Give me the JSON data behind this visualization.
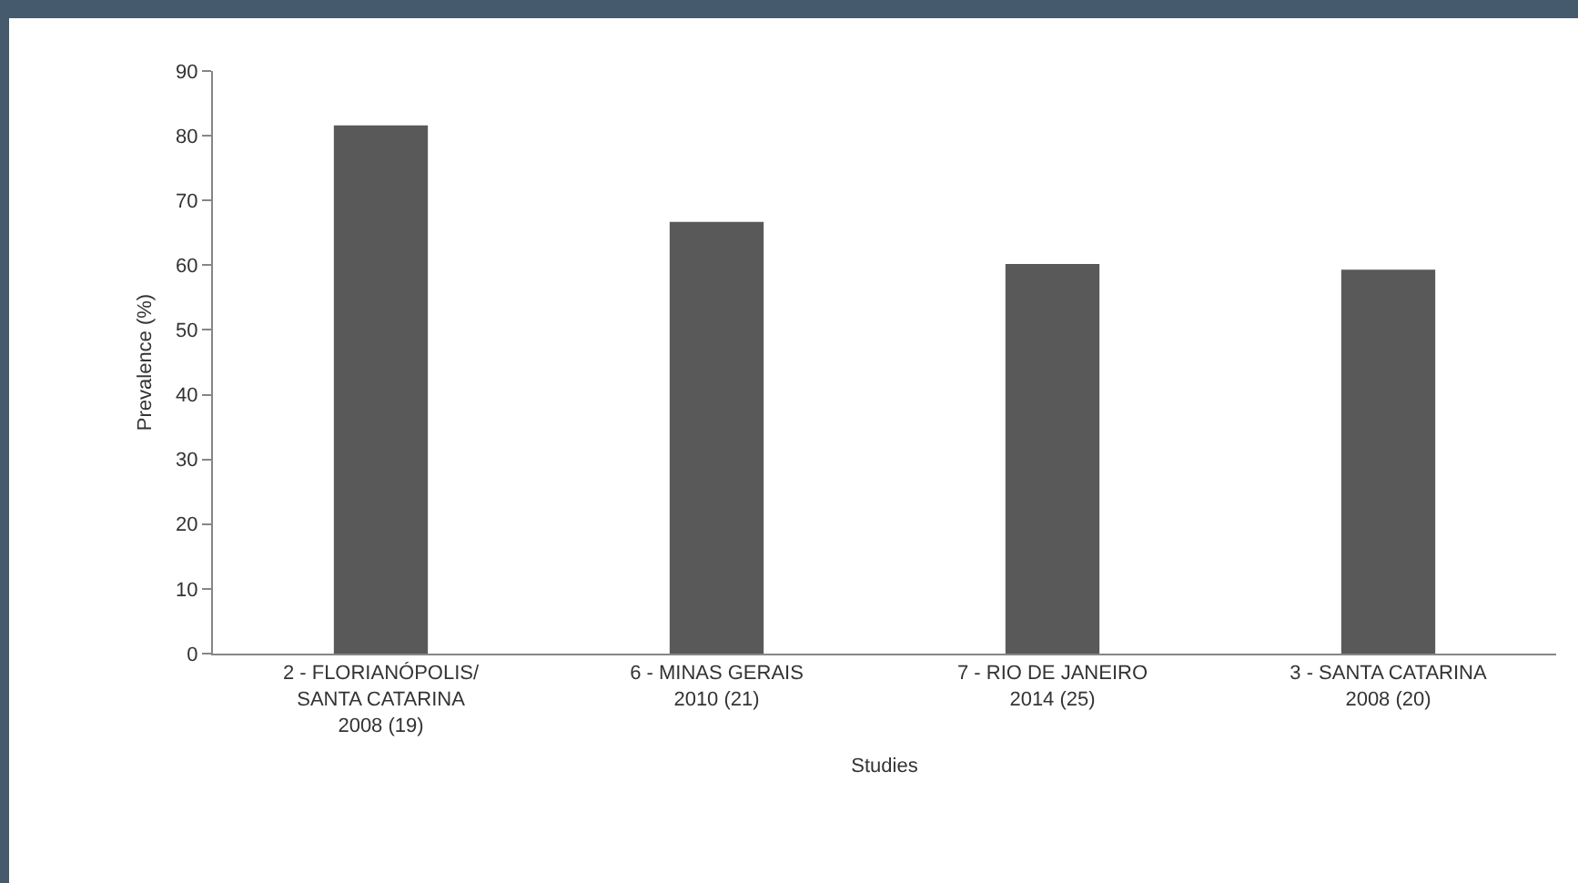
{
  "chart_data": {
    "type": "bar",
    "xlabel": "Studies",
    "ylabel": "Prevalence (%)",
    "categories": [
      "2 - FLORIANÓPOLIS/\nSANTA CATARINA\n2008 (19)",
      "6 - MINAS GERAIS\n2010 (21)",
      "7 - RIO DE JANEIRO\n2014 (25)",
      "3 - SANTA CATARINA\n2008 (20)"
    ],
    "values": [
      81.6,
      66.7,
      60.2,
      59.3
    ],
    "color": "#595959",
    "ylim": [
      0,
      90
    ],
    "yticks": [
      0,
      10,
      20,
      30,
      40,
      50,
      60,
      70,
      80,
      90
    ]
  }
}
